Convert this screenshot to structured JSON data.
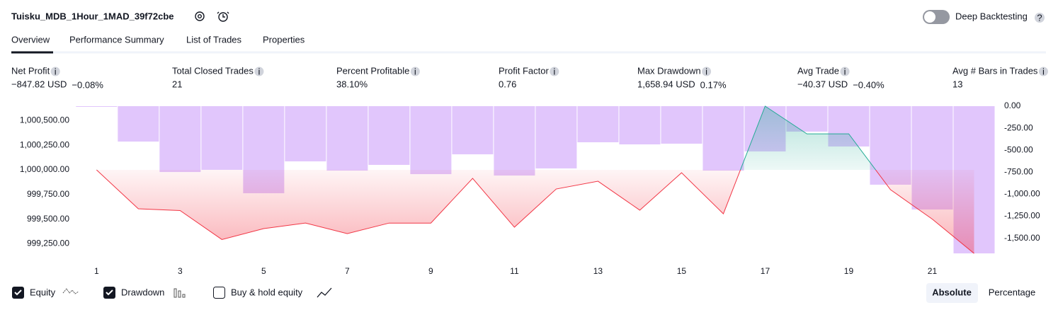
{
  "header": {
    "title": "Tuisku_MDB_1Hour_1MAD_39f72cbe",
    "toggle_label": "Deep Backtesting"
  },
  "tabs": [
    "Overview",
    "Performance Summary",
    "List of Trades",
    "Properties"
  ],
  "metrics": [
    {
      "label": "Net Profit",
      "value": "−847.82 USD",
      "pct": "−0.08%",
      "color": "#f23645"
    },
    {
      "label": "Total Closed Trades",
      "value": "21",
      "color": "#131722"
    },
    {
      "label": "Percent Profitable",
      "value": "38.10%",
      "color": "#089981"
    },
    {
      "label": "Profit Factor",
      "value": "0.76",
      "color": "#f23645"
    },
    {
      "label": "Max Drawdown",
      "value": "1,658.94 USD",
      "pct": "0.17%",
      "color": "#f23645"
    },
    {
      "label": "Avg Trade",
      "value": "−40.37 USD",
      "pct": "−0.40%",
      "color": "#f23645"
    },
    {
      "label": "Avg # Bars in Trades",
      "value": "13",
      "color": "#131722"
    }
  ],
  "chart_data": {
    "type": "combo",
    "x": [
      1,
      2,
      3,
      4,
      5,
      6,
      7,
      8,
      9,
      10,
      11,
      12,
      13,
      14,
      15,
      16,
      17,
      18,
      19,
      20,
      21,
      22
    ],
    "xlim": [
      0.52,
      22.5
    ],
    "xticks": [
      1,
      3,
      5,
      7,
      9,
      11,
      13,
      15,
      17,
      19,
      21
    ],
    "series": [
      {
        "name": "Equity",
        "type": "line",
        "color": "#f23645",
        "color_up": "#22ab94",
        "values": [
          1000000,
          999605,
          999587,
          999293,
          999404,
          999460,
          999353,
          999460,
          999460,
          999914,
          999418,
          999806,
          999885,
          999591,
          999971,
          999554,
          1000647,
          1000366,
          1000366,
          999799,
          999500,
          999152
        ]
      },
      {
        "name": "Drawdown",
        "type": "bar",
        "axis": "y2",
        "color": "#e1c6fc",
        "values": [
          0,
          -402,
          -748,
          -723,
          -989,
          -627,
          -732,
          -667,
          -772,
          -547,
          -788,
          -707,
          -410,
          -434,
          -426,
          -732,
          -514,
          -289,
          -458,
          -892,
          -1174,
          -1672
        ]
      }
    ],
    "ylim": [
      999138,
      1000647
    ],
    "yticks": [
      {
        "value": 1000500,
        "label": "1,000,500.00"
      },
      {
        "value": 1000250,
        "label": "1,000,250.00"
      },
      {
        "value": 1000000,
        "label": "1,000,000.00"
      },
      {
        "value": 999750,
        "label": "999,750.00"
      },
      {
        "value": 999500,
        "label": "999,500.00"
      },
      {
        "value": 999250,
        "label": "999,250.00"
      }
    ],
    "y2lim": [
      -1688,
      0
    ],
    "y2ticks": [
      {
        "value": 0,
        "label": "0.00"
      },
      {
        "value": -250,
        "label": "-250.00"
      },
      {
        "value": -500,
        "label": "-500.00"
      },
      {
        "value": -750,
        "label": "-750.00"
      },
      {
        "value": -1000,
        "label": "-1,000.00"
      },
      {
        "value": -1250,
        "label": "-1,250.00"
      },
      {
        "value": -1500,
        "label": "-1,500.00"
      }
    ],
    "legend": [
      "Equity",
      "Drawdown",
      "Buy & hold equity"
    ],
    "modes": [
      "Absolute",
      "Percentage"
    ]
  }
}
